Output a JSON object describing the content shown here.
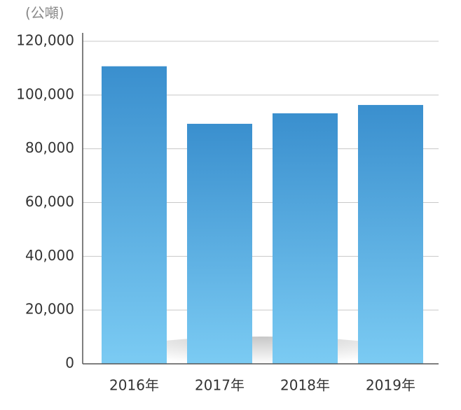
{
  "chart_data": {
    "type": "bar",
    "unit_label": "(公噸)",
    "categories": [
      "2016年",
      "2017年",
      "2018年",
      "2019年"
    ],
    "values": [
      110700,
      89300,
      93200,
      96300
    ],
    "gradient": [
      "#3a8fce",
      "#7bcbf3"
    ],
    "ylim": [
      0,
      120000
    ],
    "yticks": [
      0,
      {
        "value": 20000,
        "label": "20,000"
      },
      {
        "value": 40000,
        "label": "40,000"
      },
      {
        "value": 60000,
        "label": "60,000"
      },
      {
        "value": 80000,
        "label": "80,000"
      },
      {
        "value": 100000,
        "label": "100,000"
      },
      {
        "value": 120000,
        "label": "120,000"
      }
    ],
    "grid": true
  }
}
